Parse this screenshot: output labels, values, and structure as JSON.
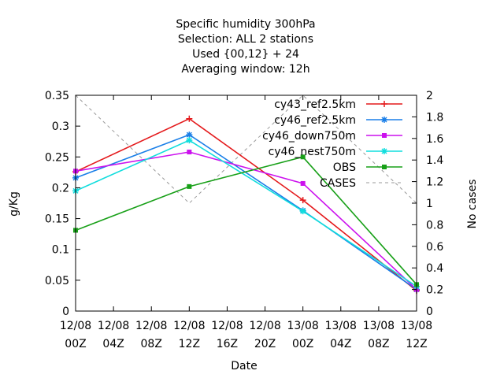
{
  "chart_data": {
    "type": "line",
    "title_lines": [
      "Specific humidity 300hPa",
      "Selection: ALL      2 stations",
      "Used {00,12} + 24",
      "Averaging window: 12h"
    ],
    "xlabel": "Date",
    "ylabel": "g/Kg",
    "y2label": "No cases",
    "x_ticks": [
      {
        "line1": "12/08",
        "line2": "00Z"
      },
      {
        "line1": "12/08",
        "line2": "04Z"
      },
      {
        "line1": "12/08",
        "line2": "08Z"
      },
      {
        "line1": "12/08",
        "line2": "12Z"
      },
      {
        "line1": "12/08",
        "line2": "16Z"
      },
      {
        "line1": "12/08",
        "line2": "20Z"
      },
      {
        "line1": "13/08",
        "line2": "00Z"
      },
      {
        "line1": "13/08",
        "line2": "04Z"
      },
      {
        "line1": "13/08",
        "line2": "08Z"
      },
      {
        "line1": "13/08",
        "line2": "12Z"
      }
    ],
    "x_range_hours": [
      0,
      36
    ],
    "y_ticks": [
      "0",
      "0.05",
      "0.1",
      "0.15",
      "0.2",
      "0.25",
      "0.3",
      "0.35"
    ],
    "ylim": [
      0,
      0.35
    ],
    "y2_ticks": [
      "0",
      "0.2",
      "0.4",
      "0.6",
      "0.8",
      "1",
      "1.2",
      "1.4",
      "1.6",
      "1.8",
      "2"
    ],
    "y2lim": [
      0,
      2
    ],
    "legend_position": "top-right",
    "x_hours": [
      0,
      12,
      24,
      36
    ],
    "series": [
      {
        "name": "cy43_ref2.5km",
        "color": "#e41a1c",
        "marker": "plus",
        "values": [
          0.226,
          0.312,
          0.18,
          0.033
        ]
      },
      {
        "name": "cy46_ref2.5km",
        "color": "#1a7fe8",
        "marker": "star",
        "values": [
          0.216,
          0.286,
          0.163,
          0.035
        ]
      },
      {
        "name": "cy46_down750m",
        "color": "#cc11ee",
        "marker": "box",
        "values": [
          0.227,
          0.258,
          0.207,
          0.035
        ]
      },
      {
        "name": "cy46_nest750m",
        "color": "#11dddd",
        "marker": "star",
        "values": [
          0.195,
          0.277,
          0.162,
          0.04
        ]
      },
      {
        "name": "OBS",
        "color": "#18a018",
        "marker": "box",
        "values": [
          0.131,
          0.202,
          0.25,
          0.043
        ]
      }
    ],
    "cases": {
      "name": "CASES",
      "color": "#999999",
      "axis": "y2",
      "x_hours": [
        0,
        12,
        24,
        36
      ],
      "values": [
        2,
        1,
        2,
        1
      ]
    }
  }
}
